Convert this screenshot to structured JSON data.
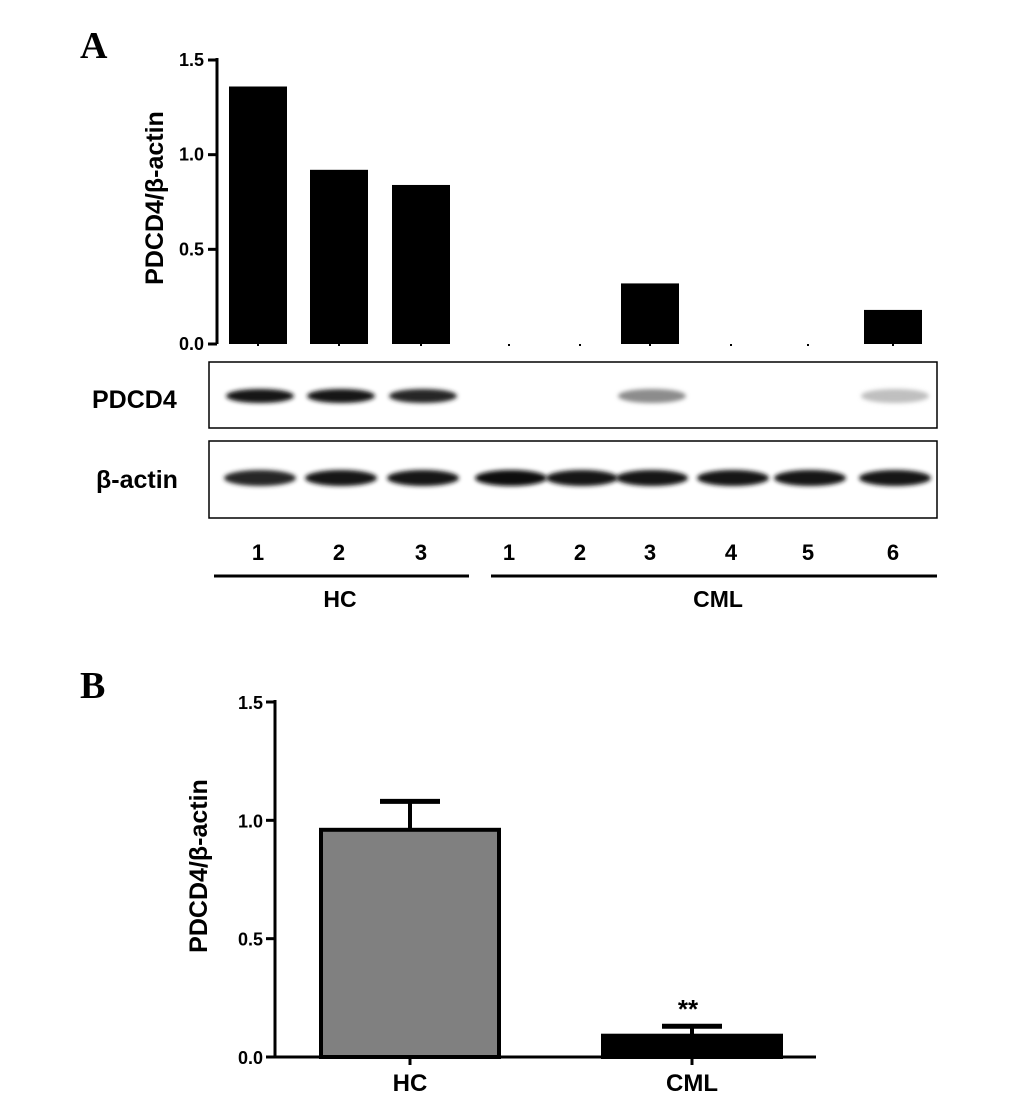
{
  "colors": {
    "bar_dark": "#000000",
    "bar_gray": "#808080",
    "axis": "#000000"
  },
  "chart_data": [
    {
      "panel": "A",
      "type": "bar",
      "ylabel": "PDCD4/β-actin",
      "ylim": [
        0,
        1.5
      ],
      "yticks": [
        "0.0",
        "0.5",
        "1.0",
        "1.5"
      ],
      "categories": [
        "1",
        "2",
        "3",
        "1",
        "2",
        "3",
        "4",
        "5",
        "6"
      ],
      "groups": [
        {
          "name": "HC",
          "start": 0,
          "end": 2
        },
        {
          "name": "CML",
          "start": 3,
          "end": 8
        }
      ],
      "values": [
        1.36,
        0.92,
        0.84,
        0.0,
        0.0,
        0.32,
        0.0,
        0.0,
        0.18
      ],
      "blots": {
        "labels": [
          "PDCD4",
          "β-actin"
        ],
        "pdcd4_intensity": [
          0.9,
          0.9,
          0.85,
          0.0,
          0.0,
          0.45,
          0.0,
          0.0,
          0.25
        ],
        "actin_intensity": [
          0.85,
          0.9,
          0.9,
          0.95,
          0.9,
          0.9,
          0.9,
          0.9,
          0.9
        ]
      }
    },
    {
      "panel": "B",
      "type": "bar",
      "ylabel": "PDCD4/β-actin",
      "ylim": [
        0,
        1.5
      ],
      "yticks": [
        "0.0",
        "0.5",
        "1.0",
        "1.5"
      ],
      "categories": [
        "HC",
        "CML"
      ],
      "values": [
        0.96,
        0.09
      ],
      "errors": [
        0.12,
        0.04
      ],
      "bar_colors": [
        "#808080",
        "#000000"
      ],
      "annotations": [
        "",
        "**"
      ]
    }
  ]
}
